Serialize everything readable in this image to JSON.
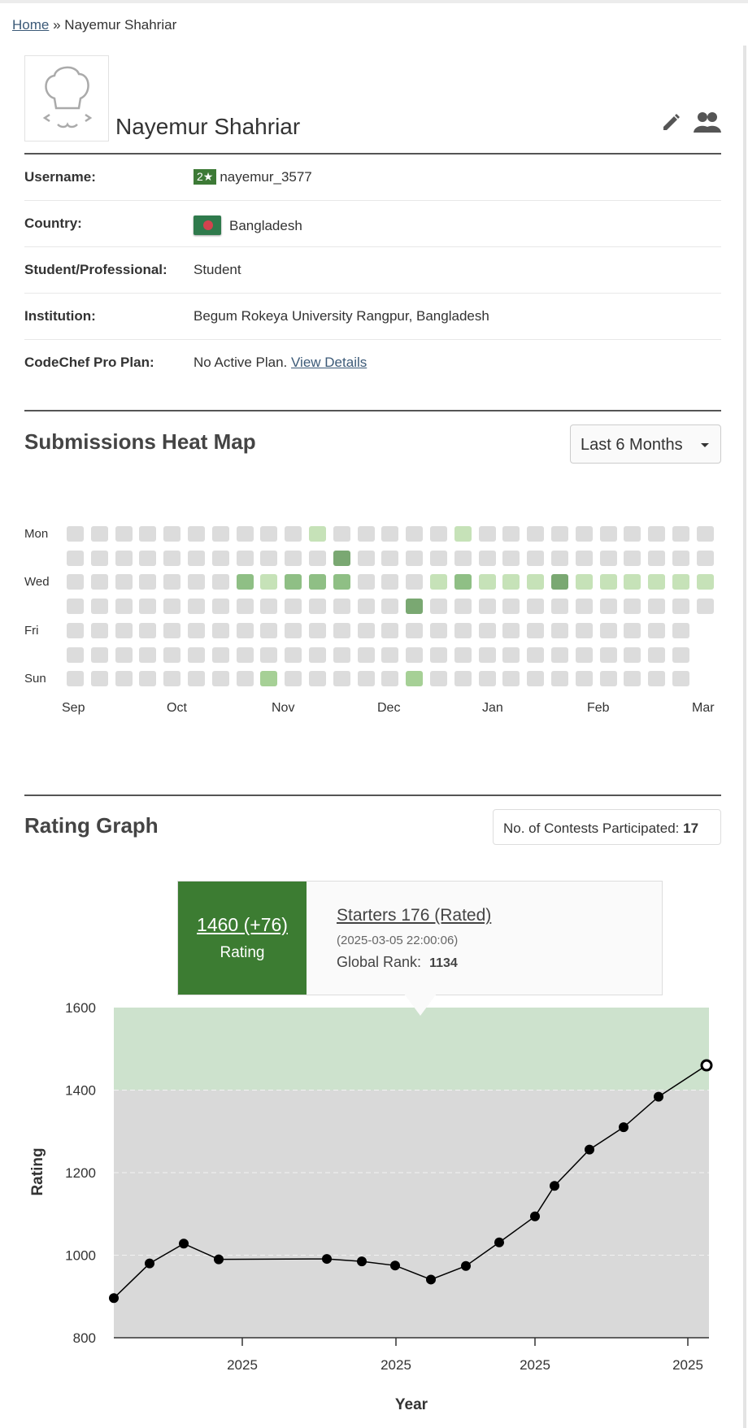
{
  "breadcrumb": {
    "home": "Home",
    "separator": "»",
    "current": "Nayemur Shahriar"
  },
  "profile": {
    "name": "Nayemur Shahriar",
    "fields": [
      {
        "label": "Username:",
        "stars": "2★",
        "value": "nayemur_3577"
      },
      {
        "label": "Country:",
        "value": "Bangladesh"
      },
      {
        "label": "Student/Professional:",
        "value": "Student"
      },
      {
        "label": "Institution:",
        "value": "Begum Rokeya University Rangpur, Bangladesh"
      },
      {
        "label": "CodeChef Pro Plan:",
        "value": "No Active Plan.",
        "link": "View Details"
      }
    ],
    "icons": [
      "chef-avatar-icon",
      "pencil-icon",
      "users-icon"
    ]
  },
  "heatmap": {
    "title": "Submissions Heat Map",
    "range_select": "Last 6 Months",
    "day_labels": [
      "Mon",
      "Wed",
      "Fri",
      "Sun"
    ],
    "month_labels": [
      "Sep",
      "Oct",
      "Nov",
      "Dec",
      "Jan",
      "Feb",
      "Mar"
    ],
    "colors": {
      "0": "#dcdcdc",
      "1": "#c6e2b8",
      "2": "#a6d096",
      "3": "#8fbf85",
      "4": "#7aa872"
    },
    "weeks": [
      [
        0,
        0,
        0,
        0,
        0,
        0,
        0
      ],
      [
        0,
        0,
        0,
        0,
        0,
        0,
        0
      ],
      [
        0,
        0,
        0,
        0,
        0,
        0,
        0
      ],
      [
        0,
        0,
        0,
        0,
        0,
        0,
        0
      ],
      [
        0,
        0,
        0,
        0,
        0,
        0,
        0
      ],
      [
        0,
        0,
        0,
        0,
        0,
        0,
        0
      ],
      [
        0,
        0,
        0,
        0,
        0,
        0,
        0
      ],
      [
        0,
        0,
        3,
        0,
        0,
        0,
        0
      ],
      [
        0,
        0,
        1,
        0,
        0,
        0,
        2
      ],
      [
        0,
        0,
        3,
        0,
        0,
        0,
        0
      ],
      [
        1,
        0,
        3,
        0,
        0,
        0,
        0
      ],
      [
        0,
        4,
        3,
        0,
        0,
        0,
        0
      ],
      [
        0,
        0,
        0,
        0,
        0,
        0,
        0
      ],
      [
        0,
        0,
        0,
        0,
        0,
        0,
        0
      ],
      [
        0,
        0,
        0,
        4,
        0,
        0,
        2
      ],
      [
        0,
        0,
        1,
        0,
        0,
        0,
        0
      ],
      [
        1,
        0,
        3,
        0,
        0,
        0,
        0
      ],
      [
        0,
        0,
        1,
        0,
        0,
        0,
        0
      ],
      [
        0,
        0,
        1,
        0,
        0,
        0,
        0
      ],
      [
        0,
        0,
        1,
        0,
        0,
        0,
        0
      ],
      [
        0,
        0,
        4,
        0,
        0,
        0,
        0
      ],
      [
        0,
        0,
        1,
        0,
        0,
        0,
        0
      ],
      [
        0,
        0,
        1,
        0,
        0,
        0,
        0
      ],
      [
        0,
        0,
        1,
        0,
        0,
        0,
        0
      ],
      [
        0,
        0,
        1,
        0,
        0,
        0,
        0
      ],
      [
        0,
        0,
        1,
        0,
        0,
        0,
        0
      ],
      [
        0,
        0,
        1,
        0
      ]
    ]
  },
  "rating": {
    "title": "Rating Graph",
    "contests_label": "No. of Contests Participated:",
    "contests_count": "17",
    "tooltip": {
      "rating": "1460 (+76)",
      "rating_label": "Rating",
      "contest": "Starters 176 (Rated)",
      "date": "(2025-03-05 22:00:06)",
      "rank_label": "Global Rank:",
      "rank": "1134"
    }
  },
  "chart_data": {
    "type": "line",
    "xlabel": "Year",
    "ylabel": "Rating",
    "ylim": [
      800,
      1600
    ],
    "yticks": [
      800,
      1000,
      1200,
      1400,
      1600
    ],
    "xtick_labels": [
      "2025",
      "2025",
      "2025",
      "2025"
    ],
    "band": {
      "from": 1400,
      "to": 1600,
      "color": "#cde2cd"
    },
    "background_color": "#d9d9d9",
    "line_color": "#000000",
    "series": [
      {
        "values": [
          896,
          980,
          1028,
          990,
          991,
          985,
          975,
          941,
          974,
          1031,
          1094,
          1168,
          1256,
          1310,
          1384,
          1460
        ]
      }
    ]
  }
}
